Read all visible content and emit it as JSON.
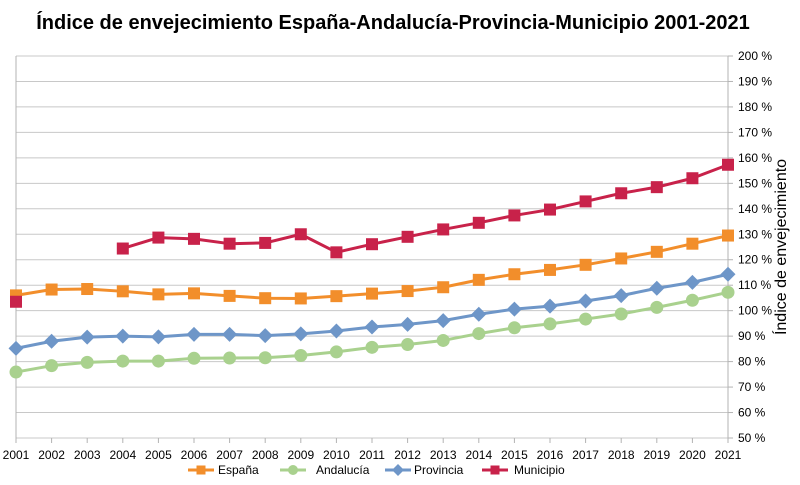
{
  "chart_data": {
    "type": "line",
    "title": "Índice de envejecimiento España-Andalucía-Provincia-Municipio 2001-2021",
    "xlabel": "",
    "ylabel": "Índice de envejecimiento",
    "ylim": [
      50,
      200
    ],
    "y_ticks": [
      "50 %",
      "60 %",
      "70 %",
      "80 %",
      "90 %",
      "100 %",
      "110 %",
      "120 %",
      "130 %",
      "140 %",
      "150 %",
      "160 %",
      "170 %",
      "180 %",
      "190 %",
      "200 %"
    ],
    "y_axis_position": "right",
    "grid": true,
    "legend_position": "bottom",
    "x": [
      "2001",
      "2002",
      "2003",
      "2004",
      "2005",
      "2006",
      "2007",
      "2008",
      "2009",
      "2010",
      "2011",
      "2012",
      "2013",
      "2014",
      "2015",
      "2016",
      "2017",
      "2018",
      "2019",
      "2020",
      "2021"
    ],
    "series": [
      {
        "name": "España",
        "color": "#f28e2b",
        "marker": "square",
        "values": [
          106.0,
          108.3,
          108.5,
          107.6,
          106.4,
          106.8,
          105.8,
          104.9,
          104.8,
          105.7,
          106.7,
          107.7,
          109.2,
          112.1,
          114.3,
          116.0,
          118.0,
          120.5,
          123.1,
          126.3,
          129.5
        ]
      },
      {
        "name": "Andalucía",
        "color": "#a9d18e",
        "marker": "circle",
        "values": [
          75.9,
          78.4,
          79.7,
          80.2,
          80.2,
          81.3,
          81.4,
          81.5,
          82.4,
          83.8,
          85.6,
          86.7,
          88.3,
          91.0,
          93.3,
          94.8,
          96.7,
          98.7,
          101.3,
          104.1,
          107.2
        ]
      },
      {
        "name": "Provincia",
        "color": "#6e96c8",
        "marker": "diamond",
        "values": [
          85.2,
          88.0,
          89.6,
          90.0,
          89.7,
          90.7,
          90.7,
          90.2,
          90.9,
          92.0,
          93.6,
          94.6,
          96.1,
          98.6,
          100.6,
          101.8,
          103.8,
          105.9,
          108.8,
          111.1,
          114.3
        ]
      },
      {
        "name": "Municipio",
        "color": "#c8224a",
        "marker": "square",
        "values": [
          103.5,
          null,
          null,
          124.4,
          128.7,
          128.2,
          126.3,
          126.6,
          130.0,
          122.9,
          126.1,
          129.0,
          131.9,
          134.5,
          137.4,
          139.7,
          142.9,
          146.1,
          148.5,
          152.0,
          157.3
        ]
      }
    ]
  }
}
